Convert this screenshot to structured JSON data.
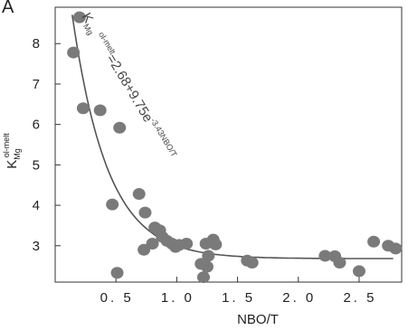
{
  "chart_data": {
    "type": "scatter",
    "panel_label": "A",
    "xlabel": "NBO/T",
    "ylabel_main": "K",
    "ylabel_sup": "ol-melt",
    "ylabel_sub": "Mg",
    "xlim": [
      0.0,
      2.85
    ],
    "ylim": [
      2.1,
      8.9
    ],
    "x_ticks": [
      0.5,
      1.0,
      1.5,
      2.0,
      2.5
    ],
    "x_tick_labels": [
      "0. 5",
      "1. 0",
      "1. 5",
      "2. 0",
      "2. 5"
    ],
    "y_ticks": [
      3,
      4,
      5,
      6,
      7,
      8
    ],
    "y_tick_labels": [
      "3",
      "4",
      "5",
      "6",
      "7",
      "8"
    ],
    "point_color": "#7a7a7a",
    "curve_color": "#555555",
    "fit_curve": {
      "a": 2.68,
      "b": 9.75,
      "c": -3.43
    },
    "equation": {
      "k": "K",
      "k_sub": "Mg",
      "k_sup": "ol-melt",
      "body": "=2.68+9.75e",
      "exp": "-3.43NBO/T"
    },
    "points": [
      {
        "x": 0.2,
        "y": 8.65
      },
      {
        "x": 0.15,
        "y": 7.78
      },
      {
        "x": 0.23,
        "y": 6.4
      },
      {
        "x": 0.37,
        "y": 6.35
      },
      {
        "x": 0.53,
        "y": 5.92
      },
      {
        "x": 0.47,
        "y": 4.02
      },
      {
        "x": 0.51,
        "y": 2.33
      },
      {
        "x": 0.69,
        "y": 4.28
      },
      {
        "x": 0.74,
        "y": 3.82
      },
      {
        "x": 0.82,
        "y": 3.45
      },
      {
        "x": 0.86,
        "y": 3.38
      },
      {
        "x": 0.88,
        "y": 3.22
      },
      {
        "x": 0.8,
        "y": 3.05
      },
      {
        "x": 0.73,
        "y": 2.9
      },
      {
        "x": 0.92,
        "y": 3.12
      },
      {
        "x": 0.96,
        "y": 3.05
      },
      {
        "x": 0.99,
        "y": 2.97
      },
      {
        "x": 1.02,
        "y": 3.02
      },
      {
        "x": 1.08,
        "y": 3.05
      },
      {
        "x": 1.2,
        "y": 2.55
      },
      {
        "x": 1.22,
        "y": 2.22
      },
      {
        "x": 1.25,
        "y": 2.48
      },
      {
        "x": 1.26,
        "y": 2.75
      },
      {
        "x": 1.24,
        "y": 3.05
      },
      {
        "x": 1.3,
        "y": 3.15
      },
      {
        "x": 1.32,
        "y": 3.03
      },
      {
        "x": 1.58,
        "y": 2.63
      },
      {
        "x": 1.62,
        "y": 2.58
      },
      {
        "x": 2.22,
        "y": 2.75
      },
      {
        "x": 2.3,
        "y": 2.74
      },
      {
        "x": 2.34,
        "y": 2.58
      },
      {
        "x": 2.5,
        "y": 2.37
      },
      {
        "x": 2.62,
        "y": 3.1
      },
      {
        "x": 2.74,
        "y": 3.0
      },
      {
        "x": 2.8,
        "y": 2.93
      }
    ]
  }
}
